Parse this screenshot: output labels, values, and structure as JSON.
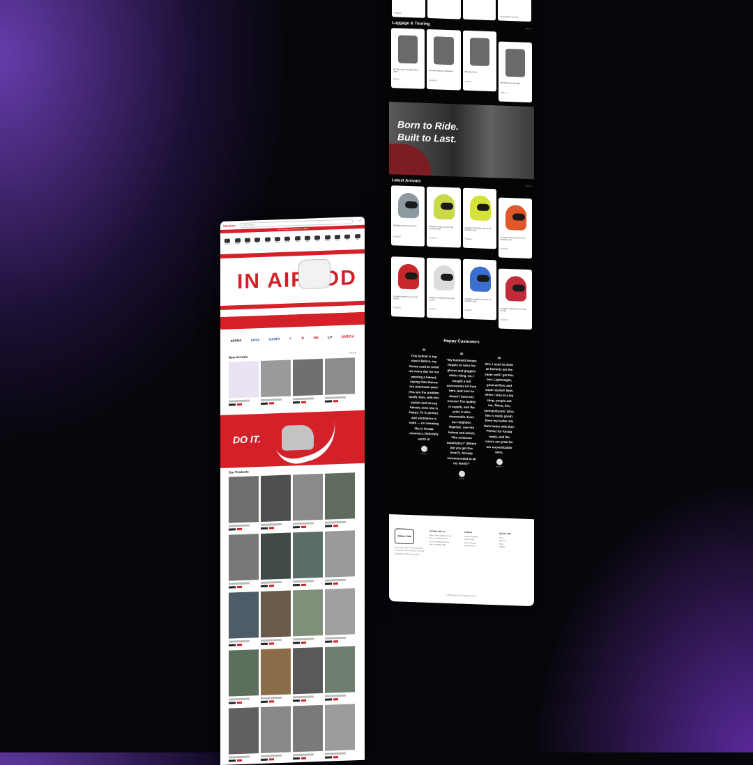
{
  "left": {
    "logo": "ShoeKart",
    "search_placeholder": "Search Products",
    "tools": "♡ 🛒",
    "strip_text": "Free shipping on all orders above ₹999",
    "categories": [
      "Sneakers",
      "Formal",
      "Sports",
      "Slides",
      "Belts",
      "Wallets",
      "Watches",
      "Caps",
      "Bags",
      "Socks",
      "Perfume",
      "Jackets",
      "Shirts",
      "Gifts"
    ],
    "hero_text": "IN  AIRPOD",
    "hero_dots": "• • •",
    "brands": [
      "adidas",
      "asics",
      "CASIO",
      "✓",
      "★",
      "NB",
      "LV",
      "OMEGA"
    ],
    "new_arrivals_title": "New Arrivals",
    "new_arrivals_link": "View all",
    "doit_text": "DO IT.",
    "our_products_title": "Our Products"
  },
  "right": {
    "top_cards": [
      "₹1,850.00",
      "",
      "",
      "Universal Mirror Extender"
    ],
    "luggage_title": "Luggage & Touring",
    "luggage_link": "View all",
    "luggage": [
      {
        "name": "RE Tank Cover for Bullet (Tank Type)",
        "price": "₹999.00"
      },
      {
        "name": "Monokini Topcase (TOP BOX)",
        "price": "₹4,850.00"
      },
      {
        "name": "Side Box (Pair)",
        "price": "₹3,999.00"
      },
      {
        "name": "RE Tank Cover for Bullet",
        "price": "₹999.00"
      }
    ],
    "banner_line1": "Born to Ride.",
    "banner_line2": "Built to Last.",
    "latest_title": "Latest Arrivals",
    "latest_link": "View all",
    "helmets_row1": [
      {
        "name": "SEGMENT VISUAL D3 GLOSS",
        "price": "₹4,990.00",
        "color": "#8d9aa0"
      },
      {
        "name": "SEGMENT VISUAL PYLOTS R3 FLOUR GLOSS",
        "price": "₹4,990.00",
        "color": "#c9d94a"
      },
      {
        "name": "SEGMENT SPEEDER PYLOTS R3 FLOUR GLOSS",
        "price": "₹4,990.00",
        "color": "#d4e23a"
      },
      {
        "name": "SEGMENT SWITCH PYLOTS R3 FLOUR GLOSS",
        "price": "₹4,990.00",
        "color": "#e0582a"
      }
    ],
    "helmets_row2": [
      {
        "name": "SEGMENT SWITCH PYLOTS R3 GLOSS",
        "price": "₹4,990.00",
        "color": "#c8282c"
      },
      {
        "name": "SEGMENT ARROWS PYLOTS R3 GLOSS",
        "price": "₹4,990.00",
        "color": "#dcdcdc"
      },
      {
        "name": "SEGMENT VANTAGE PYLOTS R3 FLOUR GLOSS",
        "price": "₹4,990.00",
        "color": "#3a6fd0"
      },
      {
        "name": "SEGMENT VANTAGE PYLOTS R3 GLOSS",
        "price": "₹4,990.00",
        "color": "#c22b3a"
      }
    ],
    "happy_title": "Happy Customers",
    "testimonials": [
      {
        "text": "This helmet is top class! Before, my Amma used to scold me every day for not wearing a helmet, saying 'Nee thanne oru prashnam aane' (You are the problem itself). Now, with this stylish and strong helmet, even she is happy. Fit is perfect, and ventilation is solid — no sweating like in Kerala summers. Definitely worth it!",
        "author": "Adarsh"
      },
      {
        "text": "\"My husband always forgets to carry his gloves and goggles while riding. So, I bought a full accessories kit from here, and now he doesn't have any excuse! The quality is superb, and the price is also reasonable. Even our neighbor, Rajettan, saw the helmet and asked, 'Ithe evidunnu edutthathu?' (Where did you get this from?). Already recommended to all my family!\"",
        "author": "Anju R"
      },
      {
        "text": "Bro, I used to think all helmets are the same until I got this one. Lightweight, good airflow, and super stylish! Now, when I stop at a tea shop, people ask me, 'Mone, ithu nannayittundu' (Son, this is really good). Even my bullet ride feels better with this! Perfect for Kerala roads, and the visors are great for our unpredictable rains.",
        "author": "Naveen V"
      }
    ],
    "footer": {
      "logo": "Riders Cafe",
      "about": "Riders Cafe is your one-stop destination for riding gear and accessories. We bring you quality products for every rider.",
      "contact_title": "Contact with us",
      "contact_lines": [
        "Riders Cafe, Kottayam, Kerala",
        "Phone: +91 98765 43210",
        "Email: info@riderscafe.com",
        "Mon - Sat 10AM - 8PM"
      ],
      "quick_title": "Quick Links",
      "quick_lines": [
        "Home",
        "About Us",
        "Shop",
        "Contact"
      ],
      "policy_title": "Policies",
      "policy_lines": [
        "Terms & Conditions",
        "Privacy Policy",
        "Return & Refund",
        "Shipping Policy"
      ],
      "copyright": "©2025 Riders Cafe All Rights Reserved."
    }
  }
}
